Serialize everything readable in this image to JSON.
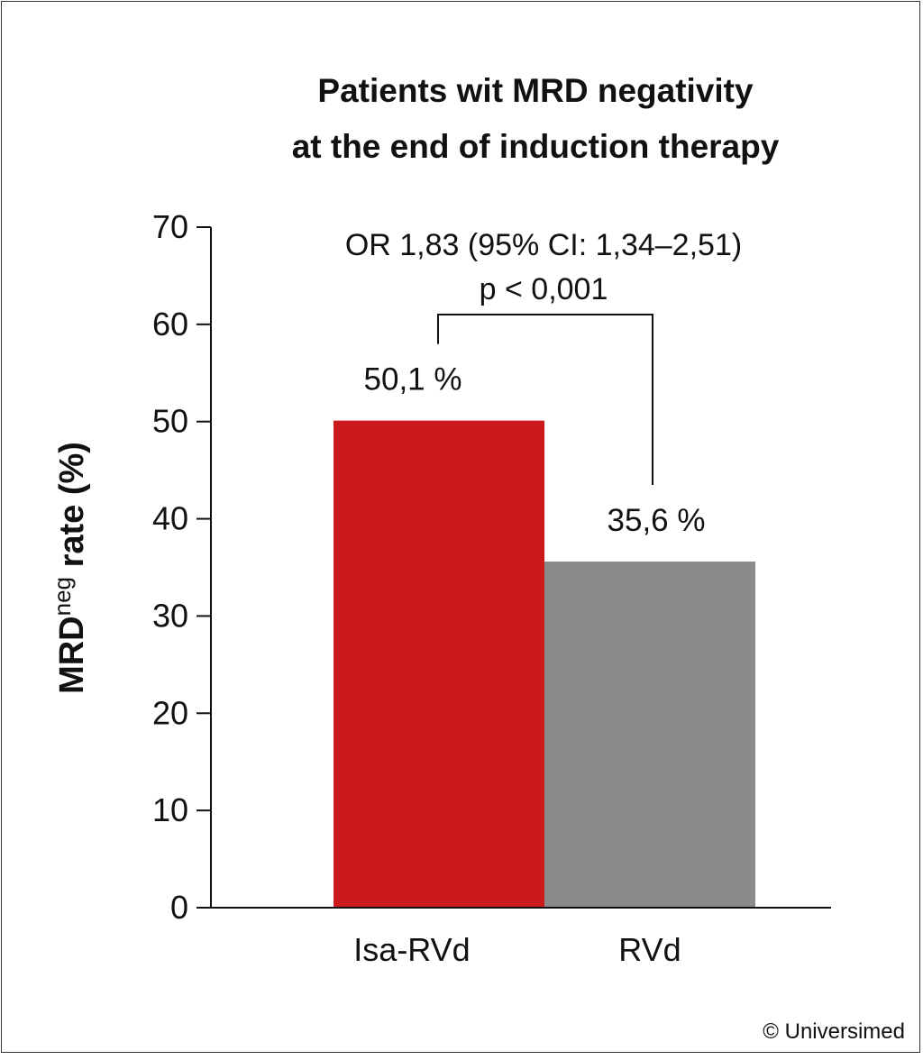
{
  "chart_data": {
    "type": "bar",
    "title_lines": [
      "Patients wit MRD negativity",
      "at the end of induction therapy"
    ],
    "categories": [
      "Isa-RVd",
      "RVd"
    ],
    "values": [
      50.1,
      35.6
    ],
    "value_labels": [
      "50,1 %",
      "35,6 %"
    ],
    "colors": [
      "#cc1a1c",
      "#8a8a8a"
    ],
    "ylabel_main": "MRD",
    "ylabel_sup": "neg",
    "ylabel_rest": " rate (%)",
    "ylim": [
      0,
      70
    ],
    "yticks": [
      0,
      10,
      20,
      30,
      40,
      50,
      60,
      70
    ],
    "grid": false,
    "annotation": {
      "line1": "OR 1,83 (95% CI: 1,34–2,51)",
      "line2": "p < 0,001"
    }
  },
  "footer": {
    "copyright": "© Universimed"
  }
}
